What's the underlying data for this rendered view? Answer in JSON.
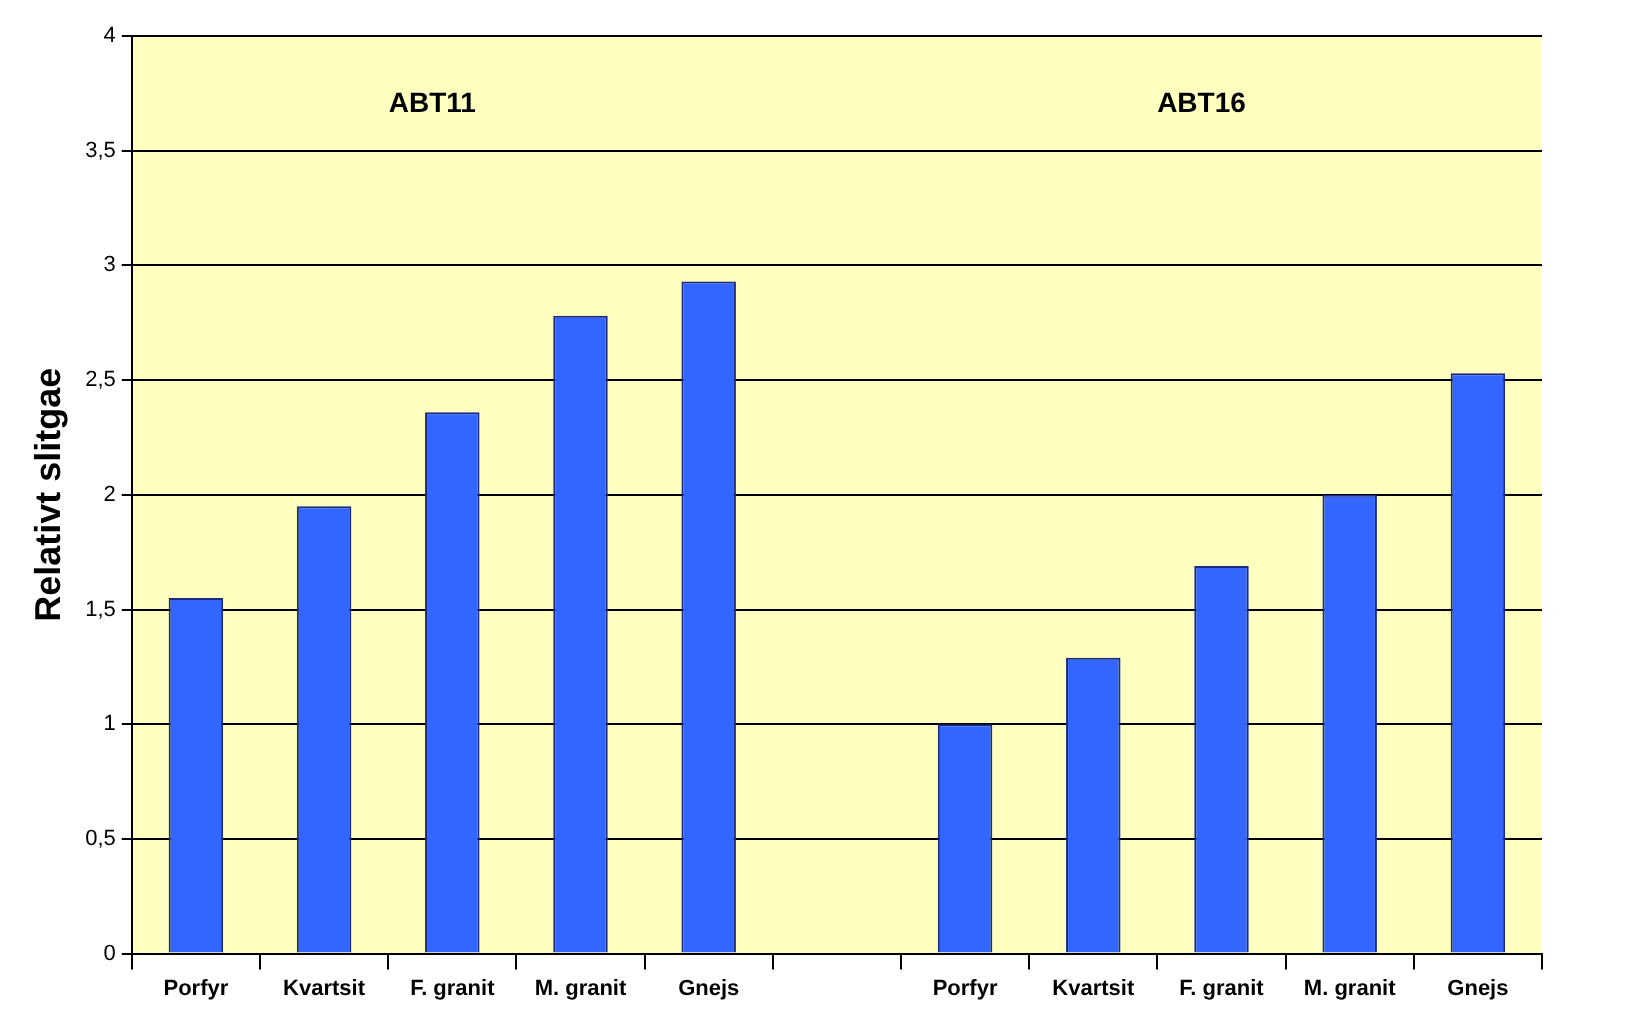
{
  "chart_data": {
    "type": "bar",
    "ylabel": "Relativt slitgae",
    "categories": [
      "Porfyr",
      "Kvartsit",
      "F. granit",
      "M. granit",
      "Gnejs",
      null,
      "Porfyr",
      "Kvartsit",
      "F. granit",
      "M. granit",
      "Gnejs"
    ],
    "values": [
      1.55,
      1.95,
      2.36,
      2.78,
      2.93,
      null,
      1.0,
      1.29,
      1.69,
      2.0,
      2.53
    ],
    "color": "#3366ff",
    "ylim": [
      0,
      4
    ],
    "yticks": [
      0,
      {
        "value": 0.5,
        "label": "0,5"
      },
      1,
      {
        "value": 1.5,
        "label": "1,5"
      },
      2,
      {
        "value": 2.5,
        "label": "2,5"
      },
      3,
      {
        "value": 3.5,
        "label": "3,5"
      },
      4
    ],
    "grid": "y",
    "legend": false,
    "annotations": [
      "ABT11",
      "ABT16"
    ]
  }
}
